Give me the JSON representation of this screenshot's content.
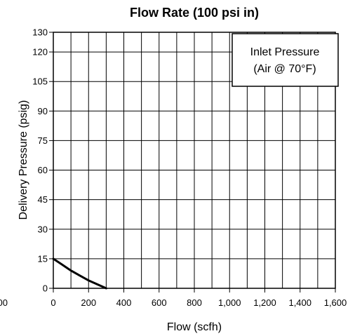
{
  "chart_data": {
    "type": "line",
    "title": "Flow Rate (100 psi in)",
    "xlabel": "Flow (scfh)",
    "ylabel": "Delivery Pressure (psig)",
    "xlim": [
      0,
      1600
    ],
    "ylim": [
      0,
      130
    ],
    "x_ticks": [
      {
        "value": 0,
        "label": "0"
      },
      {
        "value": 200,
        "label": "200"
      },
      {
        "value": 400,
        "label": "400"
      },
      {
        "value": 600,
        "label": "600"
      },
      {
        "value": 800,
        "label": "800"
      },
      {
        "value": 1000,
        "label": "1,000"
      },
      {
        "value": 1200,
        "label": "1,200"
      },
      {
        "value": 1400,
        "label": "1,400"
      },
      {
        "value": 1600,
        "label": "1,600"
      }
    ],
    "x_extra_tick": {
      "value": -200,
      "label": "00"
    },
    "y_ticks": [
      {
        "value": 0,
        "label": "0"
      },
      {
        "value": 15,
        "label": "15"
      },
      {
        "value": 30,
        "label": "30"
      },
      {
        "value": 45,
        "label": "45"
      },
      {
        "value": 60,
        "label": "60"
      },
      {
        "value": 75,
        "label": "75"
      },
      {
        "value": 90,
        "label": "90"
      },
      {
        "value": 105,
        "label": "105"
      },
      {
        "value": 120,
        "label": "120"
      },
      {
        "value": 130,
        "label": "130"
      }
    ],
    "grid": true,
    "legend": {
      "position": "top-right",
      "lines": [
        "Inlet Pressure",
        "(Air @ 70°F)"
      ]
    },
    "series": [
      {
        "color": "#000000",
        "x": [
          0,
          50,
          100,
          150,
          200,
          250,
          300
        ],
        "y": [
          15,
          12,
          9,
          6.5,
          4,
          2,
          0
        ]
      }
    ]
  }
}
